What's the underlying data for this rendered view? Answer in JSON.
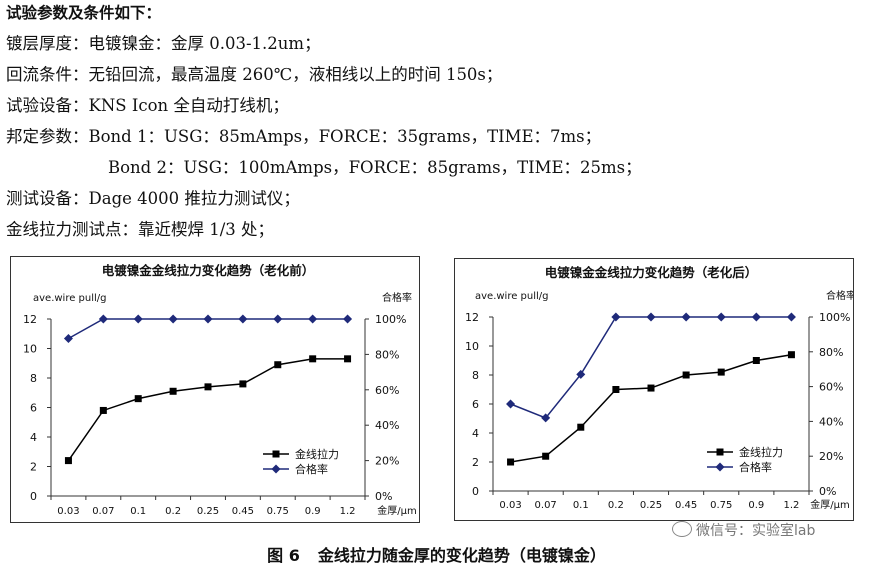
{
  "text": {
    "heading": "试验参数及条件如下：",
    "lines": [
      "镀层厚度：电镀镍金：金厚 0.03-1.2um；",
      "回流条件：无铅回流，最高温度 260℃，液相线以上的时间 150s；",
      "试验设备：KNS Icon 全自动打线机；",
      "邦定参数：Bond 1：USG：85mAmps，FORCE：35grams，TIME：7ms；",
      "Bond 2：USG：100mAmps，FORCE：85grams，TIME：25ms；",
      "测试设备：Dage 4000 推拉力测试仪；",
      "金线拉力测试点：靠近楔焊 1/3 处；"
    ]
  },
  "caption": {
    "figure_number": "图 6",
    "title": "金线拉力随金厚的变化趋势（电镀镍金）"
  },
  "watermark": "微信号：实验室lab",
  "chart_data": [
    {
      "type": "line",
      "title": "电镀镍金金线拉力变化趋势（老化前）",
      "ylabel": "ave.wire pull/g",
      "y2label": "合格率",
      "xlabel": "金厚/μm",
      "categories": [
        "0.03",
        "0.07",
        "0.1",
        "0.2",
        "0.25",
        "0.45",
        "0.75",
        "0.9",
        "1.2"
      ],
      "ylim": [
        0,
        12
      ],
      "yticks": [
        "0",
        "2",
        "4",
        "6",
        "8",
        "10",
        "12"
      ],
      "y2lim": [
        0,
        100
      ],
      "y2ticks": [
        "0%",
        "20%",
        "40%",
        "60%",
        "80%",
        "100%"
      ],
      "legend_position": "bottom-right",
      "series": [
        {
          "name": "金线拉力",
          "axis": "left",
          "marker": "square",
          "color": "#000000",
          "values": [
            2.4,
            5.8,
            6.6,
            7.1,
            7.4,
            7.6,
            8.9,
            9.3,
            9.3
          ]
        },
        {
          "name": "合格率",
          "axis": "right",
          "marker": "diamond",
          "color": "#1f2a7a",
          "values": [
            89,
            100,
            100,
            100,
            100,
            100,
            100,
            100,
            100
          ]
        }
      ]
    },
    {
      "type": "line",
      "title": "电镀镍金金线拉力变化趋势（老化后）",
      "ylabel": "ave.wire pull/g",
      "y2label": "合格率",
      "xlabel": "金厚/μm",
      "categories": [
        "0.03",
        "0.07",
        "0.1",
        "0.2",
        "0.25",
        "0.45",
        "0.75",
        "0.9",
        "1.2"
      ],
      "ylim": [
        0,
        12
      ],
      "yticks": [
        "0",
        "2",
        "4",
        "6",
        "8",
        "10",
        "12"
      ],
      "y2lim": [
        0,
        100
      ],
      "y2ticks": [
        "0%",
        "20%",
        "40%",
        "60%",
        "80%",
        "100%"
      ],
      "legend_position": "bottom-right",
      "series": [
        {
          "name": "金线拉力",
          "axis": "left",
          "marker": "square",
          "color": "#000000",
          "values": [
            2.0,
            2.4,
            4.4,
            7.0,
            7.1,
            8.0,
            8.2,
            9.0,
            9.4
          ]
        },
        {
          "name": "合格率",
          "axis": "right",
          "marker": "diamond",
          "color": "#1f2a7a",
          "values": [
            50,
            42,
            67,
            100,
            100,
            100,
            100,
            100,
            100
          ]
        }
      ]
    }
  ]
}
